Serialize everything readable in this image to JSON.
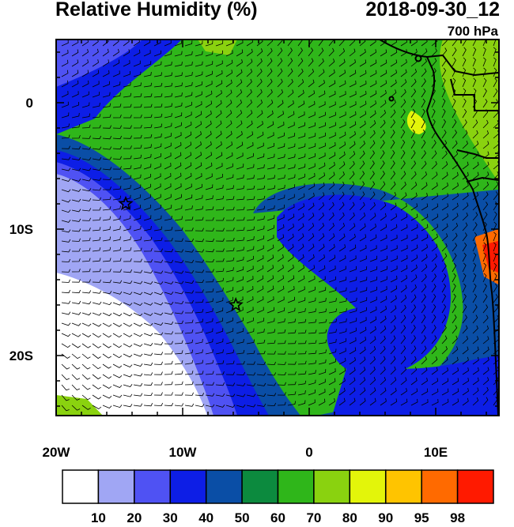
{
  "title": "Relative Humidity (%)",
  "datetime": "2018-09-30_12",
  "level": "700 hPa",
  "axes": {
    "x_ticks": [
      "20W",
      "10W",
      "0",
      "10E"
    ],
    "y_ticks": [
      "0",
      "10S",
      "20S"
    ]
  },
  "markers": [
    {
      "name": "star",
      "lon": -14.5,
      "lat": -8.0
    },
    {
      "name": "star",
      "lon": -5.8,
      "lat": -16.0
    }
  ],
  "colorbar": {
    "labels": [
      "10",
      "20",
      "30",
      "40",
      "50",
      "60",
      "70",
      "80",
      "90",
      "95",
      "98"
    ],
    "colors": [
      "#ffffff",
      "#a0a6f4",
      "#4f52f3",
      "#0d1ee6",
      "#0a4ea6",
      "#0c8a3e",
      "#2fb61a",
      "#8ad20f",
      "#e3f50a",
      "#ffc400",
      "#ff6a00",
      "#ff1a00"
    ]
  }
}
